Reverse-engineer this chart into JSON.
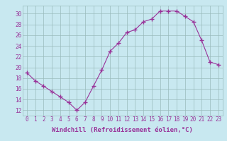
{
  "x": [
    0,
    1,
    2,
    3,
    4,
    5,
    6,
    7,
    8,
    9,
    10,
    11,
    12,
    13,
    14,
    15,
    16,
    17,
    18,
    19,
    20,
    21,
    22,
    23
  ],
  "y": [
    19,
    17.5,
    16.5,
    15.5,
    14.5,
    13.5,
    12,
    13.5,
    16.5,
    19.5,
    23,
    24.5,
    26.5,
    27,
    28.5,
    29,
    30.5,
    30.5,
    30.5,
    29.5,
    28.5,
    25,
    21,
    20.5
  ],
  "line_color": "#993399",
  "marker": "+",
  "marker_size": 4,
  "marker_lw": 1.0,
  "bg_color": "#c8e8f0",
  "grid_color": "#99bbbb",
  "xlabel": "Windchill (Refroidissement éolien,°C)",
  "xlabel_fontsize": 6.5,
  "tick_fontsize": 5.5,
  "xlim": [
    -0.5,
    23.5
  ],
  "ylim": [
    11,
    31.5
  ],
  "yticks": [
    12,
    14,
    16,
    18,
    20,
    22,
    24,
    26,
    28,
    30
  ],
  "xticks": [
    0,
    1,
    2,
    3,
    4,
    5,
    6,
    7,
    8,
    9,
    10,
    11,
    12,
    13,
    14,
    15,
    16,
    17,
    18,
    19,
    20,
    21,
    22,
    23
  ]
}
